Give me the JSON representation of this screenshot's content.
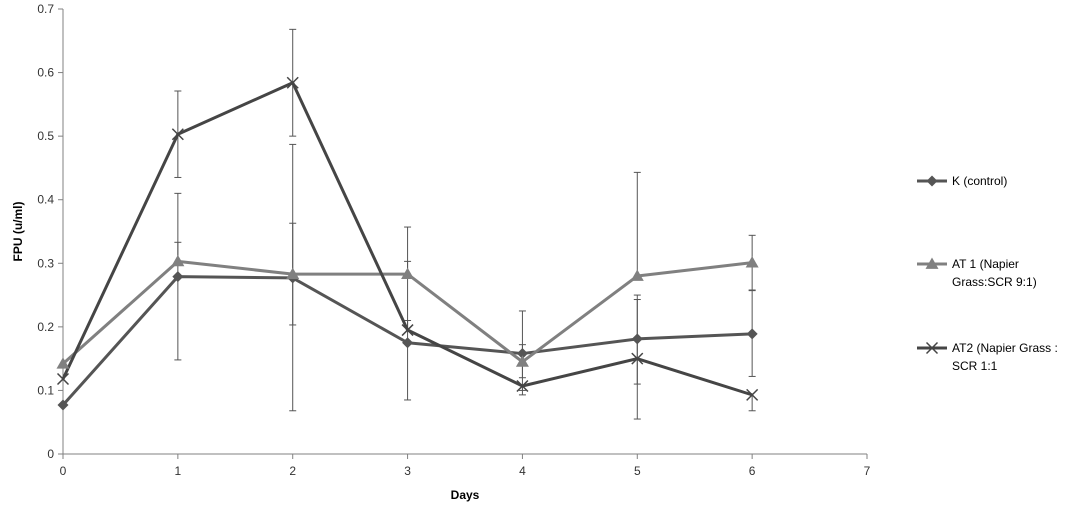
{
  "chart_data": {
    "type": "line",
    "title": "",
    "xlabel": "Days",
    "ylabel": "FPU (u/ml)",
    "xlim": [
      0,
      7
    ],
    "ylim": [
      0,
      0.7
    ],
    "x_ticks": [
      "0",
      "1",
      "2",
      "3",
      "4",
      "5",
      "6",
      "7"
    ],
    "y_ticks": [
      "0",
      "0.1",
      "0.2",
      "0.3",
      "0.4",
      "0.5",
      "0.6",
      "0.7"
    ],
    "grid": false,
    "legend_position": "right",
    "x": [
      0,
      1,
      2,
      3,
      4,
      5,
      6
    ],
    "series": [
      {
        "name": "K (control)",
        "color": "#555555",
        "marker": "diamond",
        "values": [
          0.077,
          0.279,
          0.277,
          0.175,
          0.158,
          0.181,
          0.189
        ],
        "error_low": [
          null,
          0.148,
          0.068,
          0.085,
          0.12,
          0.11,
          0.122
        ],
        "error_high": [
          null,
          0.41,
          0.487,
          0.21,
          0.225,
          0.243,
          0.257
        ]
      },
      {
        "name": "AT 1 (Napier Grass:SCR 9:1)",
        "color": "#808080",
        "marker": "triangle",
        "values": [
          0.142,
          0.303,
          0.283,
          0.283,
          0.145,
          0.28,
          0.301
        ],
        "error_low": [
          null,
          null,
          0.203,
          null,
          0.1,
          null,
          0.258
        ],
        "error_high": [
          null,
          0.333,
          0.363,
          0.357,
          0.172,
          0.443,
          0.344
        ]
      },
      {
        "name": "AT2 (Napier Grass : SCR 1:1",
        "color": "#454545",
        "marker": "x",
        "values": [
          0.118,
          0.503,
          0.584,
          0.195,
          0.107,
          0.15,
          0.093
        ],
        "error_low": [
          null,
          0.435,
          0.5,
          null,
          0.093,
          0.055,
          0.068
        ],
        "error_high": [
          null,
          0.571,
          0.668,
          0.303,
          null,
          0.25,
          null
        ]
      }
    ]
  },
  "legend": [
    {
      "lines": [
        "K (control)"
      ]
    },
    {
      "lines": [
        "AT 1 (Napier",
        "Grass:SCR 9:1)"
      ]
    },
    {
      "lines": [
        "AT2 (Napier Grass :",
        "SCR 1:1"
      ]
    }
  ]
}
